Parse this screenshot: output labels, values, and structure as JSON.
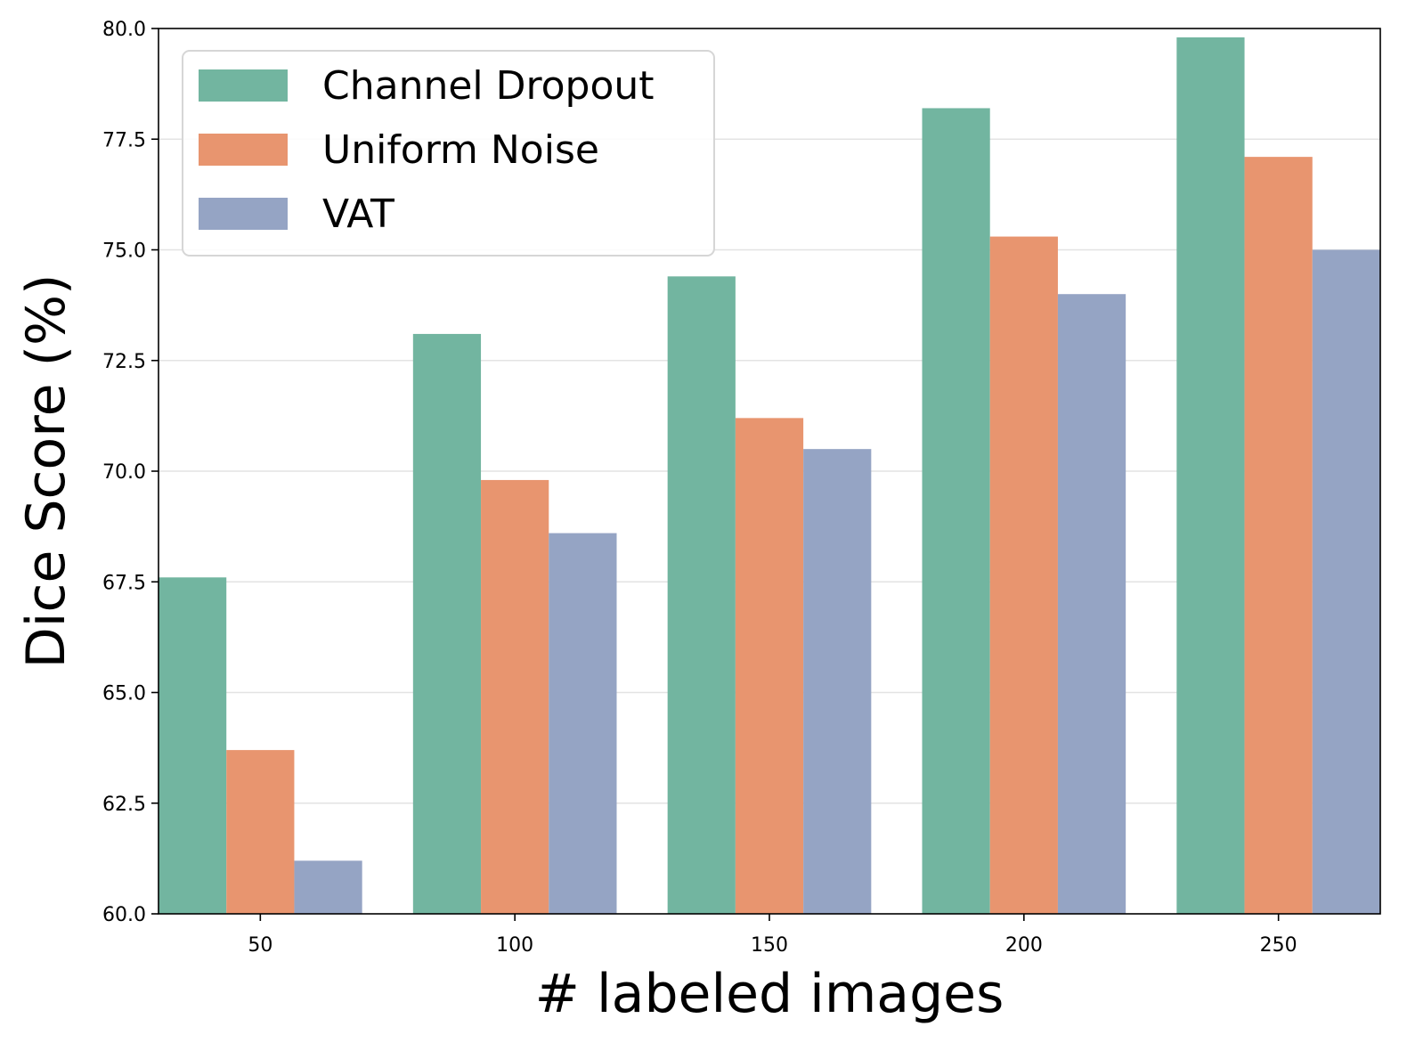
{
  "chart_data": {
    "type": "bar",
    "title": "",
    "xlabel": "# labeled images",
    "ylabel": "Dice Score (%)",
    "categories": [
      "50",
      "100",
      "150",
      "200",
      "250"
    ],
    "ylim": [
      60.0,
      80.0
    ],
    "yticks": [
      "60.0",
      "62.5",
      "65.0",
      "67.5",
      "70.0",
      "72.5",
      "75.0",
      "77.5",
      "80.0"
    ],
    "grid": "horizontal",
    "legend_position": "top-left",
    "series": [
      {
        "name": "Channel Dropout",
        "color": "#72b5a0",
        "values": [
          67.6,
          73.1,
          74.4,
          78.2,
          79.8
        ]
      },
      {
        "name": "Uniform Noise",
        "color": "#e8956f",
        "values": [
          63.7,
          69.8,
          71.2,
          75.3,
          77.1
        ]
      },
      {
        "name": "VAT",
        "color": "#95a4c4",
        "values": [
          61.2,
          68.6,
          70.5,
          74.0,
          75.0
        ]
      }
    ]
  }
}
